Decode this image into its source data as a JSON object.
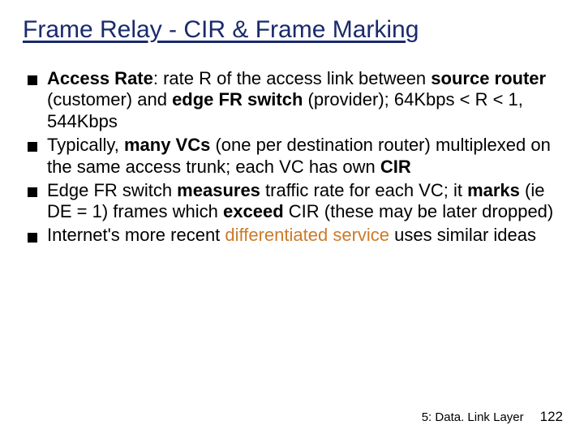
{
  "title": {
    "text": "Frame Relay - CIR & Frame Marking",
    "color": "#1a2a6c",
    "fontsize": 30
  },
  "body": {
    "color": "#000000",
    "fontsize": 22,
    "bullet_color": "#000000",
    "highlight_color": "#cc7a29",
    "bullets": [
      {
        "segments": [
          {
            "t": "Access Rate",
            "b": true
          },
          {
            "t": ": rate R of the access link between "
          },
          {
            "t": "source router",
            "b": true
          },
          {
            "t": " (customer) and "
          },
          {
            "t": "edge FR switch",
            "b": true
          },
          {
            "t": " (provider); 64Kbps < R < 1, 544Kbps"
          }
        ]
      },
      {
        "segments": [
          {
            "t": "Typically, "
          },
          {
            "t": "many VCs",
            "b": true
          },
          {
            "t": " (one per destination router) multiplexed on the same access trunk; each VC has own "
          },
          {
            "t": "CIR",
            "b": true
          }
        ]
      },
      {
        "segments": [
          {
            "t": "Edge FR switch "
          },
          {
            "t": "measures",
            "b": true
          },
          {
            "t": " traffic rate for each VC; it "
          },
          {
            "t": "marks",
            "b": true
          },
          {
            "t": " (ie DE = 1) frames which "
          },
          {
            "t": "exceed",
            "b": true
          },
          {
            "t": " CIR (these may be later dropped)"
          }
        ]
      },
      {
        "segments": [
          {
            "t": "Internet's more recent "
          },
          {
            "t": "differentiated service",
            "ds": true
          },
          {
            "t": " uses similar ideas"
          }
        ]
      }
    ]
  },
  "footer": {
    "section": "5: Data. Link Layer",
    "page": "122",
    "section_fontsize": 15,
    "page_fontsize": 17,
    "section_color": "#000000",
    "page_color": "#000000"
  }
}
